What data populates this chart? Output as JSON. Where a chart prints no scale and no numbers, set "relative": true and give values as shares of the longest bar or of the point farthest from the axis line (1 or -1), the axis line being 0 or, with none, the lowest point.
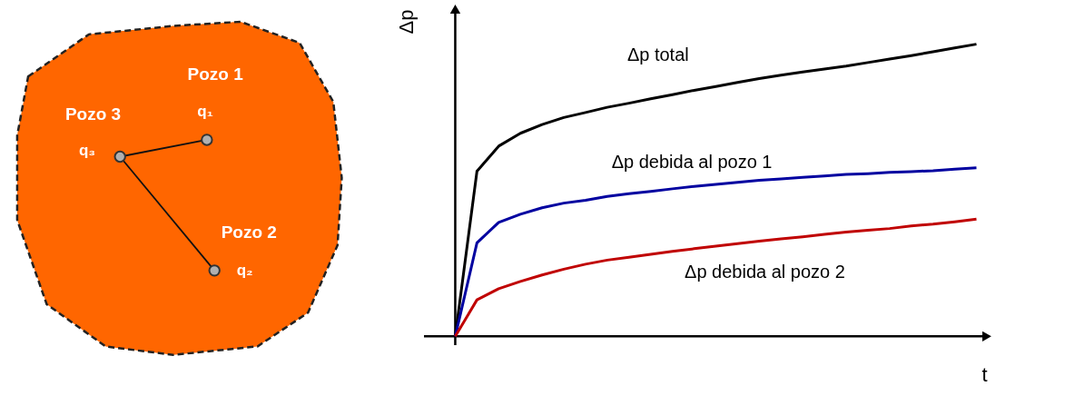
{
  "chart_data": [
    {
      "type": "other",
      "annotations": [
        "Pozo 1",
        "q₁",
        "Pozo 3",
        "q₃",
        "Pozo 2",
        "q₂"
      ]
    },
    {
      "type": "line",
      "relative": true,
      "xlabel": "t",
      "ylabel": "Δp",
      "tick_labels": false,
      "grid": false,
      "legend": false,
      "marker": "none",
      "line_style": "solid",
      "categories": [
        null,
        null,
        null,
        null,
        null,
        null,
        null,
        null,
        null,
        null,
        null,
        null,
        null,
        null,
        null,
        null,
        null,
        null,
        null,
        null,
        null,
        null,
        null,
        null,
        null
      ],
      "series": [
        {
          "name": "Δp total",
          "color": "#000000",
          "values": [
            0,
            0.565,
            0.651,
            0.695,
            0.725,
            0.749,
            0.766,
            0.784,
            0.798,
            0.813,
            0.827,
            0.842,
            0.855,
            0.869,
            0.882,
            0.894,
            0.905,
            0.915,
            0.925,
            0.937,
            0.949,
            0.961,
            0.974,
            0.987,
            1
          ]
        },
        {
          "name": "Δp debida al pozo 1",
          "color": "#0000a0",
          "values": [
            0,
            0.32,
            0.39,
            0.418,
            0.44,
            0.456,
            0.466,
            0.479,
            0.488,
            0.496,
            0.505,
            0.513,
            0.52,
            0.527,
            0.534,
            0.539,
            0.544,
            0.549,
            0.554,
            0.557,
            0.561,
            0.564,
            0.567,
            0.572,
            0.577
          ]
        },
        {
          "name": "Δp debida al pozo 2",
          "color": "#c00000",
          "values": [
            0,
            0.125,
            0.163,
            0.188,
            0.21,
            0.23,
            0.247,
            0.261,
            0.271,
            0.281,
            0.291,
            0.3,
            0.309,
            0.317,
            0.326,
            0.334,
            0.341,
            0.349,
            0.357,
            0.363,
            0.369,
            0.378,
            0.384,
            0.392,
            0.401
          ]
        }
      ]
    }
  ]
}
